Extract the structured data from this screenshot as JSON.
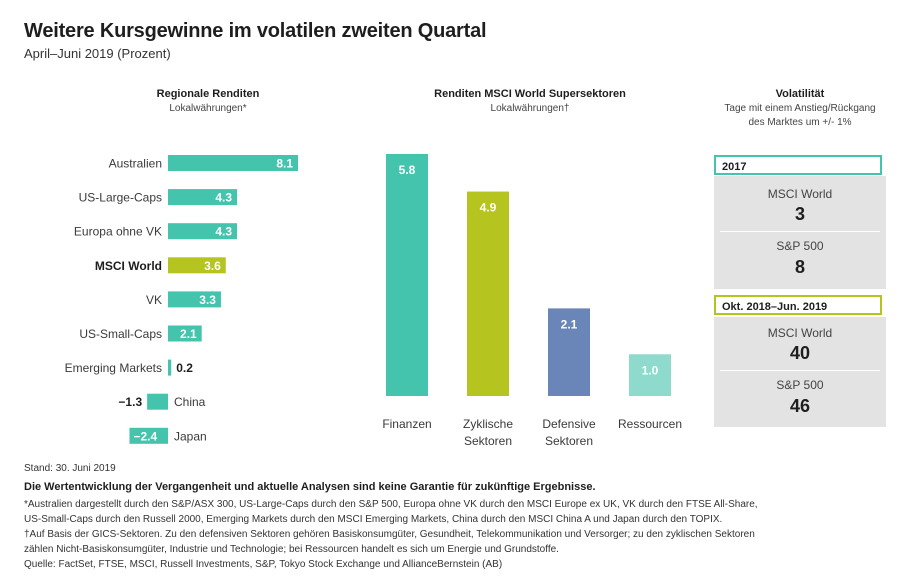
{
  "header": {
    "title": "Weitere Kursgewinne im volatilen zweiten Quartal",
    "subtitle": "April–Juni 2019 (Prozent)"
  },
  "colors": {
    "teal": "#44c4ad",
    "olive": "#b5c41e",
    "blue": "#6a85b8",
    "light_teal": "#8edbcd",
    "box_gray": "#e3e3e3"
  },
  "chart_data": [
    {
      "type": "bar",
      "orientation": "horizontal",
      "title": "Regionale Renditen",
      "subtitle": "Lokalwährungen*",
      "categories": [
        "Australien",
        "US-Large-Caps",
        "Europa ohne VK",
        "MSCI World",
        "VK",
        "US-Small-Caps",
        "Emerging Markets",
        "China",
        "Japan"
      ],
      "values": [
        8.1,
        4.3,
        4.3,
        3.6,
        3.3,
        2.1,
        0.2,
        -1.3,
        -2.4
      ],
      "labels": [
        "8.1",
        "4.3",
        "4.3",
        "3.6",
        "3.3",
        "2.1",
        "0.2",
        "−1.3",
        "−2.4"
      ],
      "highlight": "MSCI World"
    },
    {
      "type": "bar",
      "orientation": "vertical",
      "title": "Renditen MSCI World Supersektoren",
      "subtitle": "Lokalwährungen†",
      "categories": [
        [
          "Finanzen"
        ],
        [
          "Zyklische",
          "Sektoren"
        ],
        [
          "Defensive",
          "Sektoren"
        ],
        [
          "Ressourcen"
        ]
      ],
      "values": [
        5.8,
        4.9,
        2.1,
        1.0
      ],
      "labels": [
        "5.8",
        "4.9",
        "2.1",
        "1.0"
      ],
      "ylim": [
        0,
        5.8
      ]
    },
    {
      "type": "table",
      "title": "Volatilität",
      "subtitle_lines": [
        "Tage mit einem Anstieg/Rückgang",
        "des Marktes um +/- 1%"
      ],
      "groups": [
        {
          "period": "2017",
          "rows": [
            {
              "name": "MSCI World",
              "value": "3"
            },
            {
              "name": "S&P 500",
              "value": "8"
            }
          ]
        },
        {
          "period": "Okt. 2018–Jun. 2019",
          "rows": [
            {
              "name": "MSCI World",
              "value": "40"
            },
            {
              "name": "S&P 500",
              "value": "46"
            }
          ]
        }
      ]
    }
  ],
  "footer": {
    "date": "Stand: 30. Juni 2019",
    "disclaimer": "Die Wertentwicklung der Vergangenheit und aktuelle Analysen sind keine Garantie für zukünftige Ergebnisse.",
    "note1a": "*Australien dargestellt durch den S&P/ASX 300, US-Large-Caps durch den S&P 500, Europa ohne VK durch den MSCI Europe ex UK, VK durch den FTSE All-Share,",
    "note1b": "US-Small-Caps durch den Russell 2000, Emerging Markets durch den MSCI Emerging Markets, China durch den MSCI China A und Japan durch den TOPIX.",
    "note2a": "†Auf Basis der GICS-Sektoren. Zu den defensiven Sektoren gehören Basiskonsumgüter, Gesundheit, Telekommunikation und Versorger; zu den zyklischen Sektoren",
    "note2b": "zählen Nicht-Basiskonsumgüter, Industrie und Technologie; bei Ressourcen handelt es sich um Energie und Grundstoffe.",
    "source": "Quelle: FactSet, FTSE, MSCI, Russell Investments, S&P, Tokyo Stock Exchange und AllianceBernstein (AB)"
  }
}
